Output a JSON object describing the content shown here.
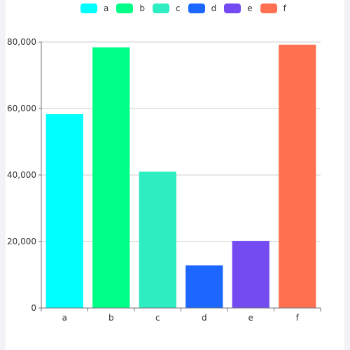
{
  "chart_data": {
    "type": "bar",
    "title": "",
    "xlabel": "",
    "ylabel": "",
    "categories": [
      "a",
      "b",
      "c",
      "d",
      "e",
      "f"
    ],
    "values": [
      58300,
      78400,
      41000,
      12800,
      20200,
      79200
    ],
    "colors": [
      "#00ffff",
      "#00ff87",
      "#2dedc1",
      "#1b67ff",
      "#744bf0",
      "#ff7150"
    ],
    "ylim": [
      0,
      80000
    ],
    "yticks": [
      0,
      20000,
      40000,
      60000,
      80000
    ],
    "ytick_labels": [
      "0",
      "20,000",
      "40,000",
      "60,000",
      "80,000"
    ],
    "grid": "horizontal",
    "legend": {
      "position": "top-center",
      "entries": [
        "a",
        "b",
        "c",
        "d",
        "e",
        "f"
      ]
    }
  }
}
